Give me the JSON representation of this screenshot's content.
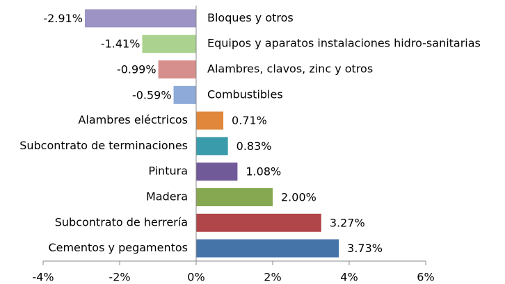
{
  "chart_data": {
    "type": "bar",
    "orientation": "horizontal",
    "categories": [
      "Bloques y otros",
      "Equipos y aparatos instalaciones hidro-sanitarias",
      "Alambres, clavos, zinc y otros",
      "Combustibles",
      "Alambres eléctricos",
      "Subcontrato de terminaciones",
      "Pintura",
      "Madera",
      "Subcontrato de herrería",
      "Cementos y pegamentos"
    ],
    "values": [
      -2.91,
      -1.41,
      -0.99,
      -0.59,
      0.71,
      0.83,
      1.08,
      2.0,
      3.27,
      3.73
    ],
    "value_labels": [
      "-2.91%",
      "-1.41%",
      "-0.99%",
      "-0.59%",
      "0.71%",
      "0.83%",
      "1.08%",
      "2.00%",
      "3.27%",
      "3.73%"
    ],
    "colors": [
      "#9d93c4",
      "#abd28f",
      "#d68f8d",
      "#8eaad8",
      "#e0873b",
      "#3a9bab",
      "#715a98",
      "#86a851",
      "#b0464a",
      "#4474a8"
    ],
    "xlim": [
      -4,
      6
    ],
    "xticks": [
      {
        "value": -4,
        "label": "-4%"
      },
      {
        "value": -2,
        "label": "-2%"
      },
      {
        "value": 0,
        "label": "0%"
      },
      {
        "value": 2,
        "label": "2%"
      },
      {
        "value": 4,
        "label": "4%"
      },
      {
        "value": 6,
        "label": "6%"
      }
    ]
  }
}
